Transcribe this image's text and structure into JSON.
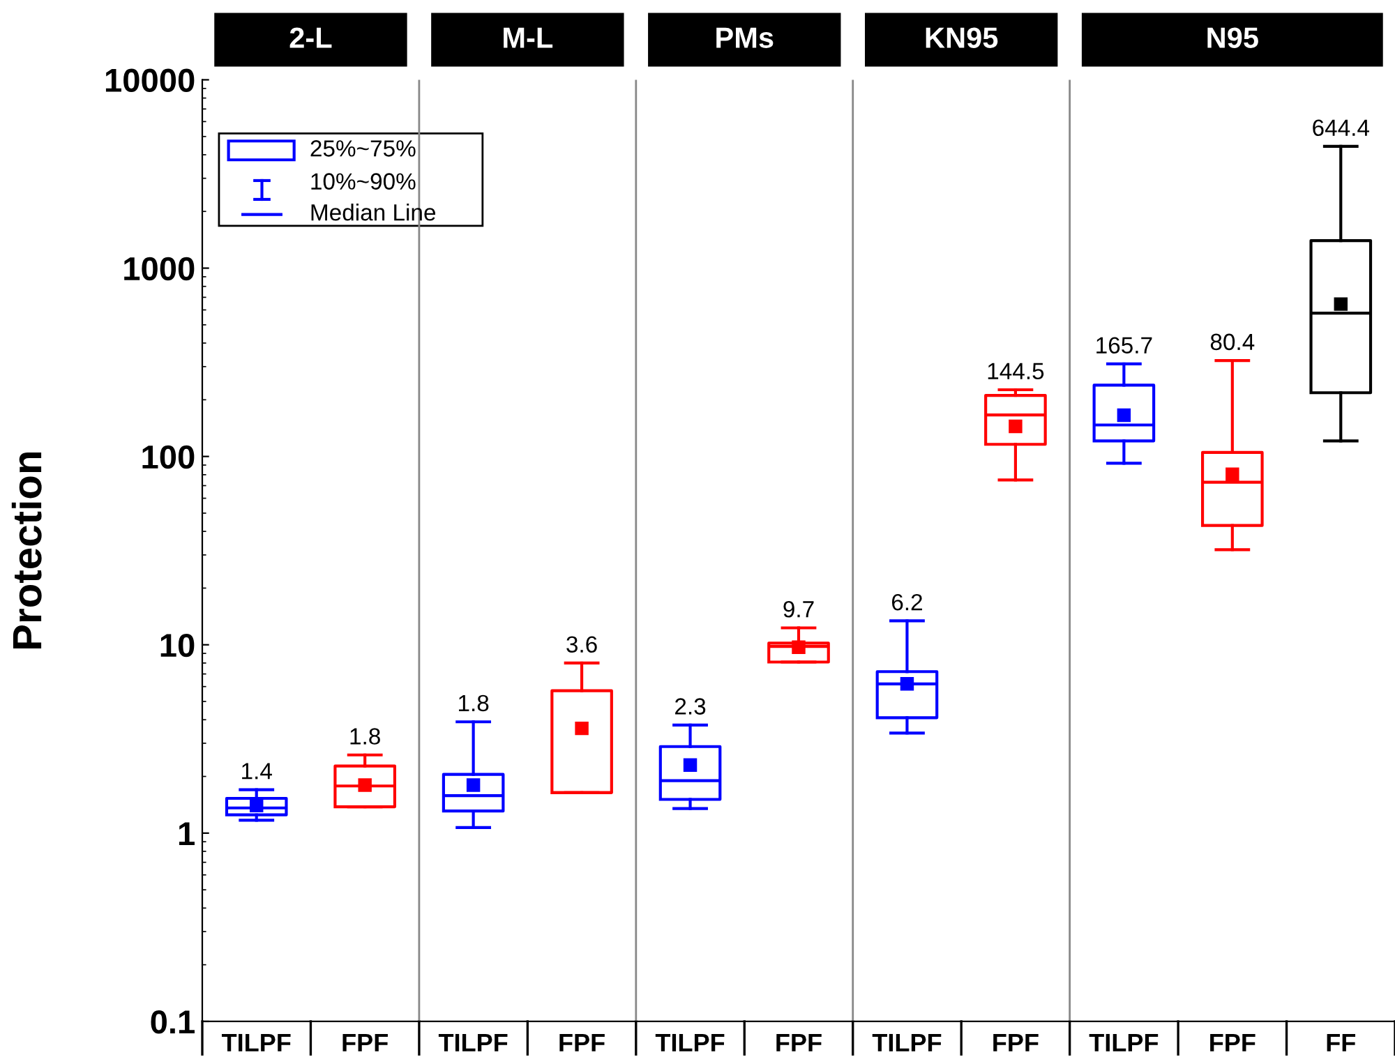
{
  "chart_data": {
    "type": "box",
    "ylabel": "Protection",
    "categories": [
      "TILPF",
      "FPF",
      "TILPF",
      "FPF",
      "TILPF",
      "FPF",
      "TILPF",
      "FPF",
      "TILPF",
      "FPF",
      "FF"
    ],
    "colors": [
      "#0000ff",
      "#ff0000",
      "#0000ff",
      "#ff0000",
      "#0000ff",
      "#ff0000",
      "#0000ff",
      "#ff0000",
      "#0000ff",
      "#ff0000",
      "#000000"
    ],
    "boxes": [
      {
        "low": 1.17,
        "q1": 1.25,
        "median": 1.36,
        "q3": 1.53,
        "high": 1.7,
        "mean": 1.4
      },
      {
        "low": 1.38,
        "q1": 1.38,
        "median": 1.78,
        "q3": 2.27,
        "high": 2.6,
        "mean": 1.8
      },
      {
        "low": 1.07,
        "q1": 1.31,
        "median": 1.58,
        "q3": 2.05,
        "high": 3.9,
        "mean": 1.8
      },
      {
        "low": 1.64,
        "q1": 1.64,
        "median": 1.64,
        "q3": 5.7,
        "high": 8.0,
        "mean": 3.6
      },
      {
        "low": 1.35,
        "q1": 1.51,
        "median": 1.9,
        "q3": 2.88,
        "high": 3.75,
        "mean": 2.3
      },
      {
        "low": 8.1,
        "q1": 8.1,
        "median": 9.8,
        "q3": 10.2,
        "high": 12.3,
        "mean": 9.7
      },
      {
        "low": 3.4,
        "q1": 4.1,
        "median": 6.2,
        "q3": 7.2,
        "high": 13.4,
        "mean": 6.2
      },
      {
        "low": 75,
        "q1": 116,
        "median": 166,
        "q3": 211,
        "high": 226,
        "mean": 144.5
      },
      {
        "low": 92,
        "q1": 121,
        "median": 147,
        "q3": 239,
        "high": 310,
        "mean": 165.7
      },
      {
        "low": 32,
        "q1": 43,
        "median": 73,
        "q3": 105,
        "high": 323,
        "mean": 80.4
      },
      {
        "low": 121,
        "q1": 218,
        "median": 577,
        "q3": 1400,
        "high": 4430,
        "mean": 644.4
      }
    ],
    "value_labels": [
      "1.4",
      "1.8",
      "1.8",
      "3.6",
      "2.3",
      "9.7",
      "6.2",
      "144.5",
      "165.7",
      "80.4",
      "644.4"
    ],
    "log": true,
    "ylim": [
      0.1,
      10000
    ],
    "yticks": [
      0.1,
      1,
      10,
      100,
      1000,
      10000
    ],
    "annotations": [
      "25%~75%",
      "10%~90%",
      "Median Line",
      "2-L",
      "M-L",
      "PMs",
      "KN95",
      "N95"
    ],
    "grid": false
  }
}
